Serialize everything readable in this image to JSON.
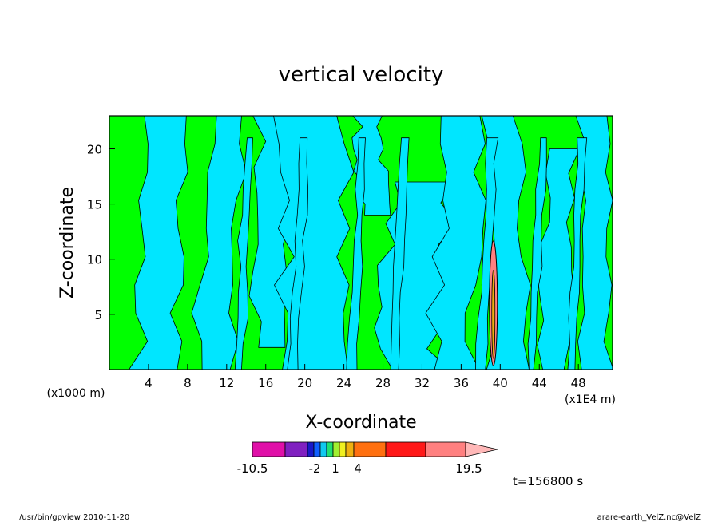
{
  "chart_data": {
    "type": "heatmap",
    "title": "vertical velocity",
    "xlabel": "X-coordinate",
    "ylabel": "Z-coordinate",
    "y_unit_label": "(x1000 m)",
    "x_unit_label": "(x1E4 m)",
    "xlim": [
      0,
      51.5
    ],
    "ylim": [
      0,
      23
    ],
    "x_ticks": [
      4,
      8,
      12,
      16,
      20,
      24,
      28,
      32,
      36,
      40,
      44,
      48
    ],
    "y_ticks": [
      5,
      10,
      15,
      20
    ],
    "colorbar": {
      "colors": [
        "#e010a8",
        "#8020c0",
        "#1818c8",
        "#1060ff",
        "#10c8f0",
        "#20e070",
        "#a0f030",
        "#f0f020",
        "#f0b010",
        "#ff7010",
        "#ff1818",
        "#ff8080",
        "#ffb8b8"
      ],
      "tick_labels": [
        "-10.5",
        "-2",
        "1",
        "4",
        "19.5"
      ],
      "tick_values": [
        -10.5,
        -2,
        1,
        4,
        19.5
      ]
    },
    "time_label": "t=156800 s"
  },
  "footer": {
    "left": "/usr/bin/gpview   2010-11-20",
    "right": "arare-earth_VelZ.nc@VelZ"
  },
  "colors": {
    "up": "#00ff00",
    "down": "#00e6ff"
  }
}
